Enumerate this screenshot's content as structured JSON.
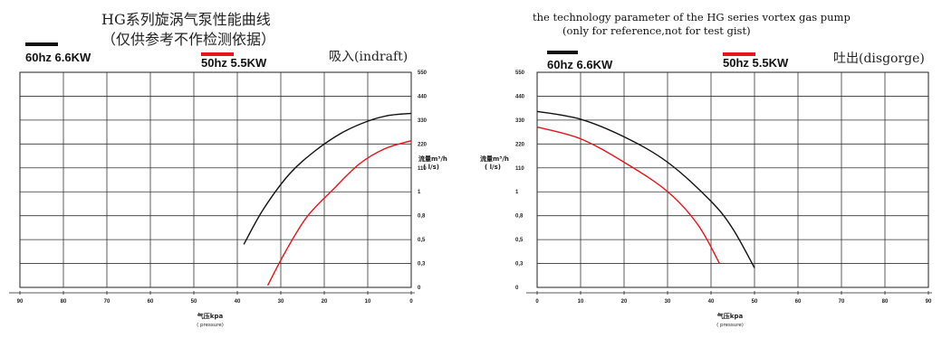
{
  "titles": {
    "left_line1": "HG系列旋涡气泵性能曲线",
    "left_line2": "（仅供参考不作检测依据）",
    "right_line1": "the technology parameter of the HG series vortex gas pump",
    "right_line2": "(only for reference,not for test gist)"
  },
  "legend": {
    "left_60": "60hz  6.6KW",
    "left_50": "50hz  5.5KW",
    "right_60": "60hz  6.6KW",
    "right_50": "50hz  5.5KW",
    "color_60": "#111111",
    "color_50": "#e8141b"
  },
  "modes": {
    "left": "吸入(indraft)",
    "right": "吐出(disgorge)"
  },
  "chart_data": [
    {
      "type": "line",
      "panel": "left",
      "x_ticks": [
        "90",
        "80",
        "70",
        "60",
        "50",
        "40",
        "30",
        "20",
        "10",
        "0"
      ],
      "y_ticks": [
        "550",
        "440",
        "330",
        "220",
        "110",
        "1",
        "0,8",
        "0,5",
        "0,3",
        "0"
      ],
      "xlabel": "气压kpa",
      "xlabel_sub": "( pressure)",
      "ylabel": "流量m³/h",
      "ylabel_sub": "( l/s)",
      "series": [
        {
          "name": "60hz  6.6KW",
          "color": "#111111",
          "x": [
            38.5,
            34,
            28,
            22,
            16,
            10,
            5,
            0
          ],
          "y": [
            110,
            200,
            290,
            350,
            395,
            425,
            440,
            445
          ]
        },
        {
          "name": "50hz  5.5KW",
          "color": "#e8141b",
          "x": [
            33,
            29,
            24,
            18,
            12,
            6,
            0
          ],
          "y": [
            5,
            90,
            180,
            250,
            315,
            355,
            375
          ]
        }
      ]
    },
    {
      "type": "line",
      "panel": "right",
      "x_ticks": [
        "0",
        "10",
        "20",
        "30",
        "40",
        "50",
        "60",
        "70",
        "80",
        "90"
      ],
      "y_ticks": [
        "550",
        "440",
        "330",
        "220",
        "110",
        "1",
        "0,8",
        "0,5",
        "0,3",
        "0"
      ],
      "xlabel": "气压kpa",
      "xlabel_sub": "( pressure)",
      "ylabel": "流量m³/h",
      "ylabel_sub": "( l/s)",
      "series": [
        {
          "name": "60hz  6.6KW",
          "color": "#111111",
          "x": [
            0,
            10,
            20,
            30,
            40,
            45,
            50
          ],
          "y": [
            450,
            430,
            385,
            320,
            220,
            150,
            50
          ]
        },
        {
          "name": "50hz  5.5KW",
          "color": "#e8141b",
          "x": [
            0,
            10,
            20,
            30,
            37,
            42
          ],
          "y": [
            410,
            380,
            320,
            245,
            160,
            60
          ]
        }
      ]
    }
  ]
}
